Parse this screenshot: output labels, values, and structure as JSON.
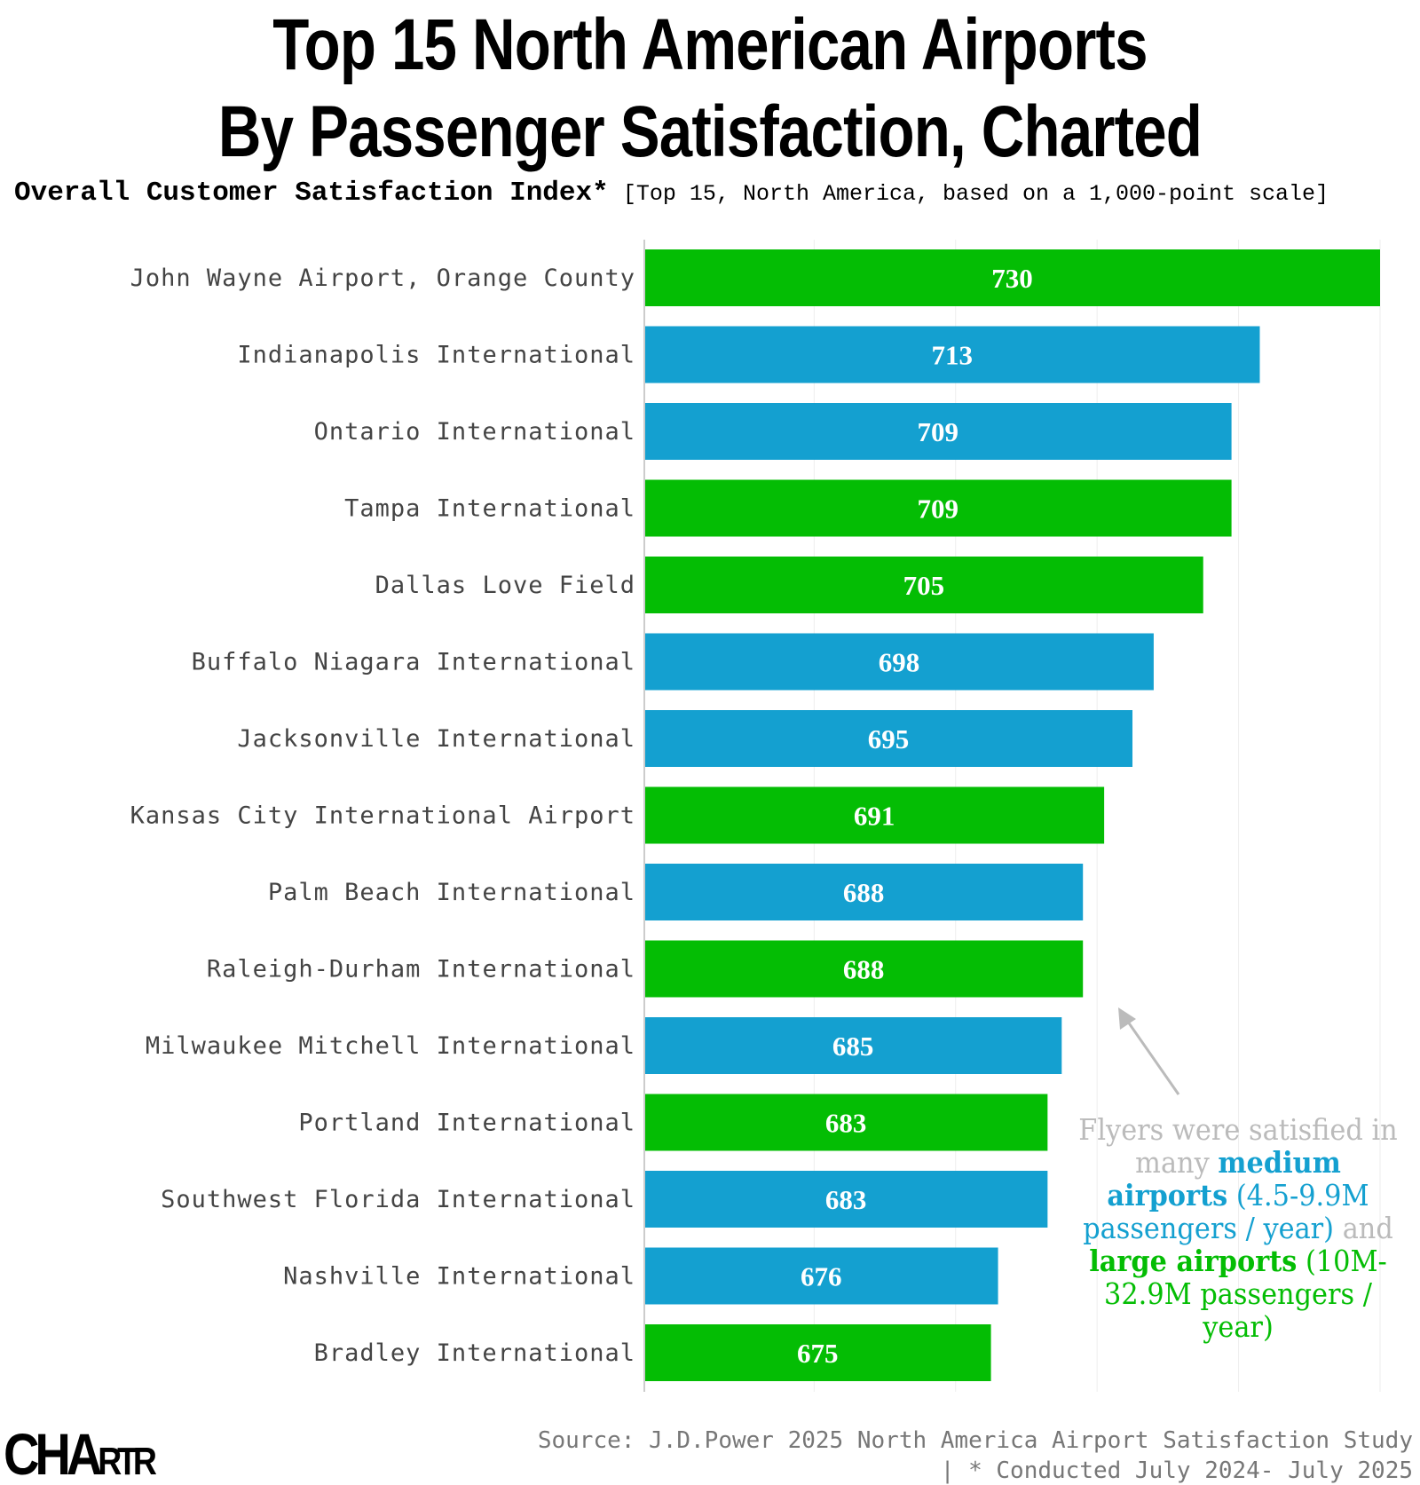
{
  "title_line1": "Top 15 North American Airports",
  "title_line2": "By Passenger Satisfaction, Charted",
  "subtitle_bold": "Overall Customer Satisfaction Index*",
  "subtitle_note": "[Top 15, North America, based on a 1,000-point scale]",
  "annotation": {
    "p1": "Flyers were satisfied in many ",
    "medium": "medium airports",
    "medium_detail": " (4.5-9.9M passengers / year)",
    "p2": " and ",
    "large": "large airports",
    "large_detail": " (10M-32.9M passengers / year)"
  },
  "source_line1": "Source: J.D.Power 2025 North America Airport Satisfaction Study",
  "source_line2": "| * Conducted July 2024- July 2025",
  "logo": "CHARTR",
  "colors": {
    "medium": "#14a0d0",
    "large": "#04bd04"
  },
  "chart_data": {
    "type": "bar",
    "orientation": "horizontal",
    "xlim": [
      626,
      730
    ],
    "grid": true,
    "gridlines": [
      650,
      670,
      690,
      710,
      730
    ],
    "categories": [
      "John Wayne Airport, Orange County",
      "Indianapolis International",
      "Ontario International",
      "Tampa International",
      "Dallas Love Field",
      "Buffalo Niagara International",
      "Jacksonville International",
      "Kansas City International Airport",
      "Palm Beach International",
      "Raleigh-Durham International",
      "Milwaukee Mitchell International",
      "Portland International",
      "Southwest Florida International",
      "Nashville International",
      "Bradley International"
    ],
    "values": [
      730,
      713,
      709,
      709,
      705,
      698,
      695,
      691,
      688,
      688,
      685,
      683,
      683,
      676,
      675
    ],
    "size_class": [
      "large",
      "medium",
      "medium",
      "large",
      "large",
      "medium",
      "medium",
      "large",
      "medium",
      "large",
      "medium",
      "large",
      "medium",
      "medium",
      "large"
    ]
  }
}
